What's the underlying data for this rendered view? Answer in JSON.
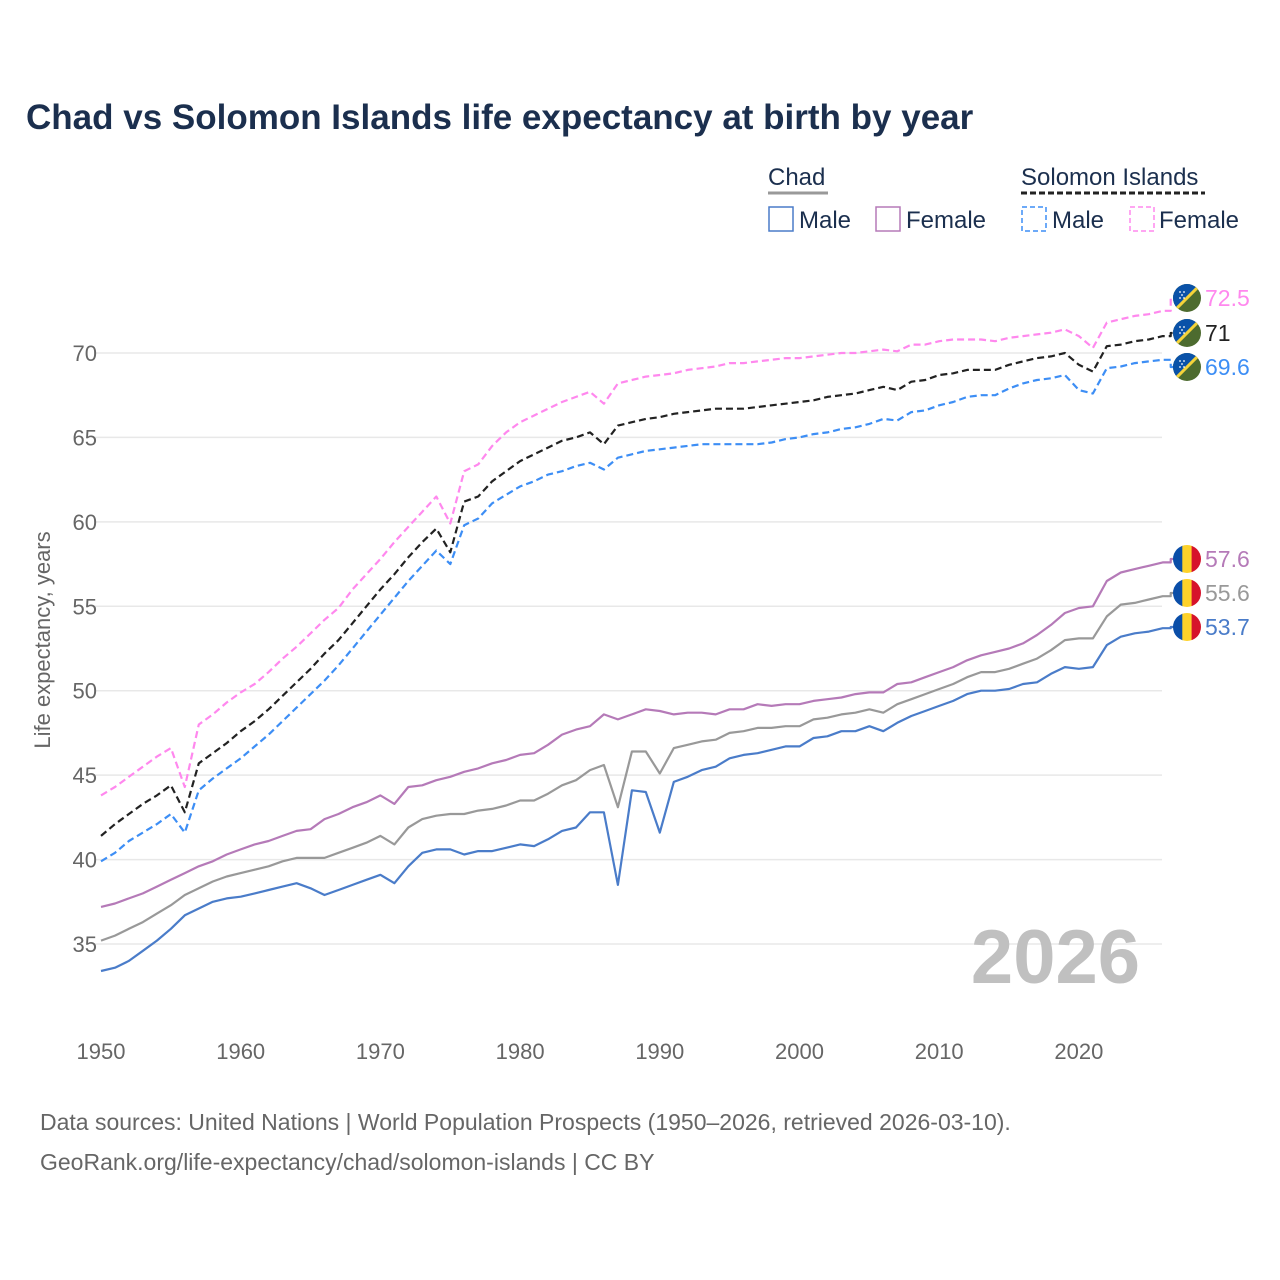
{
  "chart_data": {
    "type": "line",
    "title": "Chad vs Solomon Islands life expectancy at birth by year",
    "xlabel": "",
    "ylabel": "Life expectancy, years",
    "xlim": [
      1950,
      2026
    ],
    "ylim": [
      31,
      74
    ],
    "x_ticks": [
      "1950",
      "1960",
      "1970",
      "1980",
      "1990",
      "2000",
      "2010",
      "2020"
    ],
    "y_ticks": [
      "35",
      "40",
      "45",
      "50",
      "55",
      "60",
      "65",
      "70"
    ],
    "grid": true,
    "watermark_year": "2026",
    "legend": {
      "placement": "top-right",
      "groups": [
        {
          "label": "Chad",
          "items": [
            "Male",
            "Female"
          ]
        },
        {
          "label": "Solomon Islands",
          "items": [
            "Male",
            "Female"
          ]
        }
      ]
    },
    "x_start": 1950,
    "series": [
      {
        "name": "Solomon Islands Female",
        "color": "#ff88ee",
        "dashed": true,
        "end_label": "72.5",
        "flag": "solomon",
        "values": [
          43.8,
          44.3,
          44.9,
          45.5,
          46.1,
          46.6,
          44.3,
          48.0,
          48.6,
          49.3,
          49.9,
          50.4,
          51.1,
          51.9,
          52.6,
          53.4,
          54.2,
          54.9,
          56.0,
          56.9,
          57.8,
          58.8,
          59.7,
          60.6,
          61.5,
          59.9,
          63.0,
          63.4,
          64.5,
          65.3,
          65.9,
          66.3,
          66.7,
          67.1,
          67.4,
          67.7,
          67.0,
          68.2,
          68.4,
          68.6,
          68.7,
          68.8,
          69.0,
          69.1,
          69.2,
          69.4,
          69.4,
          69.5,
          69.6,
          69.7,
          69.7,
          69.8,
          69.9,
          70.0,
          70.0,
          70.1,
          70.2,
          70.1,
          70.5,
          70.5,
          70.7,
          70.8,
          70.8,
          70.8,
          70.7,
          70.9,
          71.0,
          71.1,
          71.2,
          71.4,
          71.0,
          70.3,
          71.8,
          72.0,
          72.2,
          72.3,
          72.5
        ]
      },
      {
        "name": "Solomon Islands",
        "color": "#222222",
        "dashed": true,
        "end_label": "71",
        "flag": "solomon",
        "values": [
          41.4,
          42.1,
          42.7,
          43.3,
          43.8,
          44.4,
          42.8,
          45.7,
          46.3,
          46.9,
          47.6,
          48.2,
          48.9,
          49.7,
          50.5,
          51.3,
          52.2,
          53.0,
          54.0,
          55.0,
          56.0,
          56.9,
          57.9,
          58.8,
          59.6,
          58.2,
          61.2,
          61.5,
          62.4,
          63.0,
          63.6,
          64.0,
          64.4,
          64.8,
          65.0,
          65.3,
          64.6,
          65.7,
          65.9,
          66.1,
          66.2,
          66.4,
          66.5,
          66.6,
          66.7,
          66.7,
          66.7,
          66.8,
          66.9,
          67.0,
          67.1,
          67.2,
          67.4,
          67.5,
          67.6,
          67.8,
          68.0,
          67.8,
          68.3,
          68.4,
          68.7,
          68.8,
          69.0,
          69.0,
          69.0,
          69.3,
          69.5,
          69.7,
          69.8,
          70.0,
          69.3,
          68.9,
          70.4,
          70.5,
          70.7,
          70.8,
          71.0
        ]
      },
      {
        "name": "Solomon Islands Male",
        "color": "#3d8ef5",
        "dashed": true,
        "end_label": "69.6",
        "flag": "solomon",
        "values": [
          39.9,
          40.4,
          41.1,
          41.6,
          42.1,
          42.7,
          41.6,
          44.1,
          44.8,
          45.4,
          46.0,
          46.7,
          47.4,
          48.2,
          49.0,
          49.8,
          50.6,
          51.5,
          52.5,
          53.5,
          54.5,
          55.5,
          56.5,
          57.4,
          58.3,
          57.5,
          59.8,
          60.2,
          61.1,
          61.6,
          62.1,
          62.4,
          62.8,
          63.0,
          63.3,
          63.5,
          63.1,
          63.8,
          64.0,
          64.2,
          64.3,
          64.4,
          64.5,
          64.6,
          64.6,
          64.6,
          64.6,
          64.6,
          64.7,
          64.9,
          65.0,
          65.2,
          65.3,
          65.5,
          65.6,
          65.8,
          66.1,
          66.0,
          66.5,
          66.6,
          66.9,
          67.1,
          67.4,
          67.5,
          67.5,
          67.9,
          68.2,
          68.4,
          68.5,
          68.7,
          67.8,
          67.6,
          69.1,
          69.2,
          69.4,
          69.5,
          69.6
        ]
      },
      {
        "name": "Chad Female",
        "color": "#b57ab8",
        "dashed": false,
        "end_label": "57.6",
        "flag": "chad",
        "values": [
          37.2,
          37.4,
          37.7,
          38.0,
          38.4,
          38.8,
          39.2,
          39.6,
          39.9,
          40.3,
          40.6,
          40.9,
          41.1,
          41.4,
          41.7,
          41.8,
          42.4,
          42.7,
          43.1,
          43.4,
          43.8,
          43.3,
          44.3,
          44.4,
          44.7,
          44.9,
          45.2,
          45.4,
          45.7,
          45.9,
          46.2,
          46.3,
          46.8,
          47.4,
          47.7,
          47.9,
          48.6,
          48.3,
          48.6,
          48.9,
          48.8,
          48.6,
          48.7,
          48.7,
          48.6,
          48.9,
          48.9,
          49.2,
          49.1,
          49.2,
          49.2,
          49.4,
          49.5,
          49.6,
          49.8,
          49.9,
          49.9,
          50.4,
          50.5,
          50.8,
          51.1,
          51.4,
          51.8,
          52.1,
          52.3,
          52.5,
          52.8,
          53.3,
          53.9,
          54.6,
          54.9,
          55.0,
          56.5,
          57.0,
          57.2,
          57.4,
          57.6
        ]
      },
      {
        "name": "Chad",
        "color": "#999999",
        "dashed": false,
        "end_label": "55.6",
        "flag": "chad",
        "values": [
          35.2,
          35.5,
          35.9,
          36.3,
          36.8,
          37.3,
          37.9,
          38.3,
          38.7,
          39.0,
          39.2,
          39.4,
          39.6,
          39.9,
          40.1,
          40.1,
          40.1,
          40.4,
          40.7,
          41.0,
          41.4,
          40.9,
          41.9,
          42.4,
          42.6,
          42.7,
          42.7,
          42.9,
          43.0,
          43.2,
          43.5,
          43.5,
          43.9,
          44.4,
          44.7,
          45.3,
          45.6,
          43.1,
          46.4,
          46.4,
          45.1,
          46.6,
          46.8,
          47.0,
          47.1,
          47.5,
          47.6,
          47.8,
          47.8,
          47.9,
          47.9,
          48.3,
          48.4,
          48.6,
          48.7,
          48.9,
          48.7,
          49.2,
          49.5,
          49.8,
          50.1,
          50.4,
          50.8,
          51.1,
          51.1,
          51.3,
          51.6,
          51.9,
          52.4,
          53.0,
          53.1,
          53.1,
          54.4,
          55.1,
          55.2,
          55.4,
          55.6
        ]
      },
      {
        "name": "Chad Male",
        "color": "#4a7cc9",
        "dashed": false,
        "end_label": "53.7",
        "flag": "chad",
        "values": [
          33.4,
          33.6,
          34.0,
          34.6,
          35.2,
          35.9,
          36.7,
          37.1,
          37.5,
          37.7,
          37.8,
          38.0,
          38.2,
          38.4,
          38.6,
          38.3,
          37.9,
          38.2,
          38.5,
          38.8,
          39.1,
          38.6,
          39.6,
          40.4,
          40.6,
          40.6,
          40.3,
          40.5,
          40.5,
          40.7,
          40.9,
          40.8,
          41.2,
          41.7,
          41.9,
          42.8,
          42.8,
          38.5,
          44.1,
          44.0,
          41.6,
          44.6,
          44.9,
          45.3,
          45.5,
          46.0,
          46.2,
          46.3,
          46.5,
          46.7,
          46.7,
          47.2,
          47.3,
          47.6,
          47.6,
          47.9,
          47.6,
          48.1,
          48.5,
          48.8,
          49.1,
          49.4,
          49.8,
          50.0,
          50.0,
          50.1,
          50.4,
          50.5,
          51.0,
          51.4,
          51.3,
          51.4,
          52.7,
          53.2,
          53.4,
          53.5,
          53.7
        ]
      }
    ]
  },
  "footer": {
    "line1": "Data sources: United Nations | World Population Prospects (1950–2026, retrieved 2026-03-10).",
    "line2": "GeoRank.org/life-expectancy/chad/solomon-islands | CC BY"
  },
  "colors": {
    "title": "#1b2f4e",
    "grid": "#e6e6e6",
    "watermark": "#c0c0c0"
  }
}
